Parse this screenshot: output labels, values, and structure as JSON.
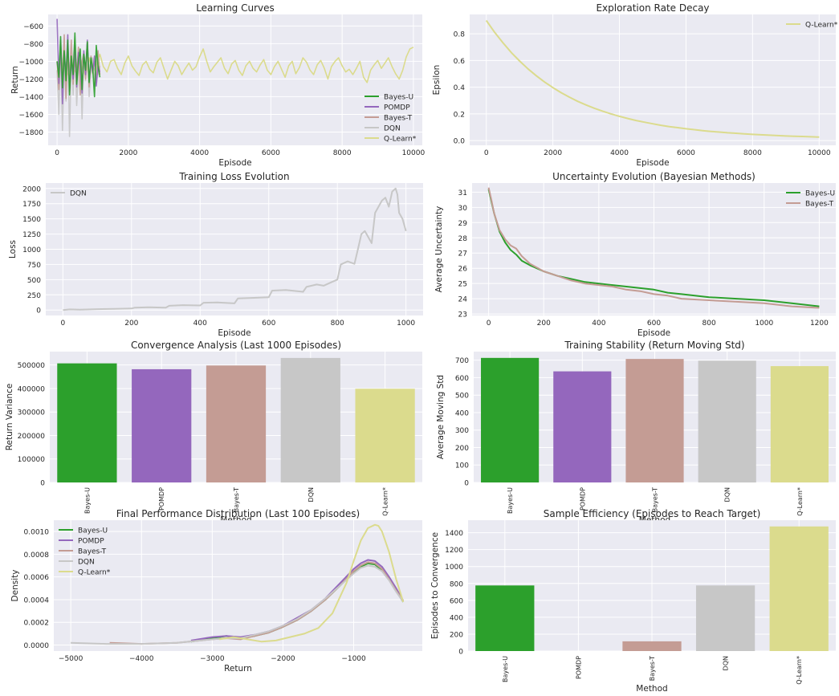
{
  "colors": {
    "Bayes-U": "#2ca02c",
    "POMDP": "#9467bd",
    "Bayes-T": "#c49c94",
    "DQN": "#c7c7c7",
    "Q-Learn*": "#dbdb8d",
    "panel_bg": "#eaeaf2",
    "grid": "#ffffff",
    "text": "#262626"
  },
  "chart_data": [
    {
      "id": "learning-curves",
      "type": "line",
      "title": "Learning Curves",
      "xlabel": "Episode",
      "ylabel": "Return",
      "xlim": [
        -250,
        10250
      ],
      "ylim": [
        -1950,
        -470
      ],
      "xticks": [
        0,
        2000,
        4000,
        6000,
        8000,
        10000
      ],
      "yticks": [
        -1800,
        -1600,
        -1400,
        -1200,
        -1000,
        -800,
        -600
      ],
      "grid": true,
      "legend": "lower-right",
      "series": [
        {
          "name": "Bayes-U",
          "x_range": [
            0,
            1200
          ],
          "values": [
            -1000,
            -1180,
            -720,
            -1300,
            -880,
            -1220,
            -760,
            -1380,
            -940,
            -1150,
            -680,
            -1260,
            -1000,
            -860,
            -1320,
            -920,
            -1100,
            -780,
            -1240,
            -960,
            -1080,
            -1400,
            -820,
            -1050,
            -1180
          ]
        },
        {
          "name": "POMDP",
          "x_range": [
            0,
            1200
          ],
          "values": [
            -520,
            -1250,
            -760,
            -1480,
            -900,
            -1160,
            -700,
            -1340,
            -980,
            -1200,
            -820,
            -1290,
            -900,
            -1060,
            -1360,
            -880,
            -1150,
            -760,
            -1230,
            -1010,
            -1130,
            -940,
            -1280,
            -1060,
            -1120
          ]
        },
        {
          "name": "Bayes-T",
          "x_range": [
            0,
            1200
          ],
          "values": [
            -1000,
            -1320,
            -860,
            -1150,
            -700,
            -1420,
            -900,
            -1180,
            -760,
            -1260,
            -980,
            -1120,
            -840,
            -1380,
            -1000,
            -900,
            -1200,
            -800,
            -1290,
            -940,
            -1100,
            -1000,
            -1240,
            -880,
            -1150
          ]
        },
        {
          "name": "DQN",
          "x_range": [
            0,
            1200
          ],
          "values": [
            -1100,
            -1600,
            -820,
            -1780,
            -1000,
            -1450,
            -700,
            -1850,
            -950,
            -1380,
            -760,
            -1500,
            -1080,
            -880,
            -1650,
            -940,
            -1220,
            -820,
            -1400,
            -1100,
            -960,
            -1280,
            -880,
            -1150,
            -1050
          ]
        },
        {
          "name": "Q-Learn*",
          "x_range": [
            0,
            10000
          ],
          "values": [
            -1000,
            -1100,
            -1080,
            -1150,
            -1020,
            -1120,
            -990,
            -1060,
            -1170,
            -960,
            -1140,
            -1030,
            -920,
            -1060,
            -1120,
            -1000,
            -980,
            -1080,
            -1150,
            -1020,
            -940,
            -1050,
            -1110,
            -1160,
            -1040,
            -1000,
            -1090,
            -1130,
            -1010,
            -960,
            -1080,
            -1200,
            -1100,
            -1000,
            -1050,
            -1150,
            -1080,
            -1020,
            -1100,
            -1060,
            -950,
            -860,
            -1000,
            -1120,
            -1060,
            -1010,
            -960,
            -1080,
            -1140,
            -1030,
            -990,
            -1100,
            -1160,
            -1050,
            -1000,
            -1080,
            -1120,
            -1040,
            -980,
            -1100,
            -1150,
            -1060,
            -1000,
            -1090,
            -1180,
            -1050,
            -1000,
            -1140,
            -1070,
            -960,
            -1010,
            -1100,
            -1150,
            -1040,
            -990,
            -1080,
            -1200,
            -1060,
            -1000,
            -960,
            -1050,
            -1120,
            -1090,
            -1150,
            -1080,
            -1000,
            -1180,
            -1240,
            -1100,
            -1040,
            -990,
            -1080,
            -1020,
            -960,
            -1060,
            -1140,
            -1200,
            -1100,
            -950,
            -860,
            -840
          ]
        }
      ]
    },
    {
      "id": "exploration-rate",
      "type": "line",
      "title": "Exploration Rate Decay",
      "xlabel": "Episode",
      "ylabel": "Epsilon",
      "xlim": [
        -500,
        10500
      ],
      "ylim": [
        -0.035,
        0.945
      ],
      "xticks": [
        0,
        2000,
        4000,
        6000,
        8000,
        10000
      ],
      "yticks": [
        0.0,
        0.2,
        0.4,
        0.6,
        0.8
      ],
      "tick_decimals": 1,
      "grid": true,
      "legend": "top-right",
      "series": [
        {
          "name": "Q-Learn*",
          "x_range": [
            0,
            10000
          ],
          "values": [
            0.9,
            0.811,
            0.732,
            0.66,
            0.596,
            0.538,
            0.486,
            0.439,
            0.397,
            0.359,
            0.325,
            0.294,
            0.267,
            0.242,
            0.22,
            0.2,
            0.182,
            0.166,
            0.151,
            0.138,
            0.126,
            0.115,
            0.105,
            0.097,
            0.089,
            0.082,
            0.075,
            0.069,
            0.064,
            0.059,
            0.055,
            0.051,
            0.047,
            0.044,
            0.041,
            0.038,
            0.035,
            0.033,
            0.031,
            0.029,
            0.027
          ]
        }
      ]
    },
    {
      "id": "training-loss",
      "type": "line",
      "title": "Training Loss Evolution",
      "xlabel": "Episode",
      "ylabel": "Loss",
      "xlim": [
        -50,
        1050
      ],
      "ylim": [
        -90,
        2090
      ],
      "xticks": [
        0,
        200,
        400,
        600,
        800,
        1000
      ],
      "yticks": [
        0,
        250,
        500,
        750,
        1000,
        1250,
        1500,
        1750,
        2000
      ],
      "grid": true,
      "legend": "top-left",
      "series": [
        {
          "name": "DQN",
          "x": [
            0,
            20,
            50,
            100,
            150,
            200,
            210,
            250,
            300,
            310,
            350,
            400,
            410,
            450,
            500,
            510,
            550,
            600,
            610,
            650,
            700,
            710,
            740,
            760,
            780,
            800,
            810,
            830,
            850,
            860,
            870,
            880,
            900,
            910,
            930,
            940,
            950,
            960,
            970,
            975,
            980,
            990,
            1000
          ],
          "values": [
            0,
            10,
            5,
            15,
            20,
            25,
            40,
            45,
            40,
            70,
            80,
            75,
            120,
            125,
            110,
            190,
            200,
            210,
            320,
            330,
            300,
            380,
            420,
            400,
            450,
            500,
            750,
            800,
            760,
            1000,
            1250,
            1300,
            1100,
            1600,
            1800,
            1850,
            1700,
            1950,
            2000,
            1900,
            1600,
            1500,
            1300
          ]
        }
      ]
    },
    {
      "id": "uncertainty-evolution",
      "type": "line",
      "title": "Uncertainty Evolution (Bayesian Methods)",
      "xlabel": "Episode",
      "ylabel": "Average Uncertainty",
      "xlim": [
        -60,
        1260
      ],
      "ylim": [
        22.9,
        31.6
      ],
      "xticks": [
        0,
        200,
        400,
        600,
        800,
        1000,
        1200
      ],
      "yticks": [
        23,
        24,
        25,
        26,
        27,
        28,
        29,
        30,
        31
      ],
      "grid": true,
      "legend": "top-right",
      "series": [
        {
          "name": "Bayes-U",
          "x": [
            0,
            10,
            20,
            40,
            60,
            80,
            100,
            120,
            150,
            200,
            250,
            300,
            350,
            400,
            450,
            500,
            550,
            600,
            650,
            700,
            800,
            900,
            1000,
            1100,
            1200
          ],
          "values": [
            31.2,
            30.4,
            29.6,
            28.4,
            27.7,
            27.2,
            26.9,
            26.5,
            26.2,
            25.8,
            25.5,
            25.3,
            25.1,
            25.0,
            24.9,
            24.8,
            24.7,
            24.6,
            24.4,
            24.3,
            24.1,
            24.0,
            23.9,
            23.7,
            23.5
          ]
        },
        {
          "name": "Bayes-T",
          "x": [
            0,
            10,
            20,
            40,
            60,
            80,
            100,
            120,
            150,
            200,
            250,
            300,
            350,
            400,
            450,
            500,
            550,
            600,
            650,
            700,
            800,
            900,
            1000,
            1100,
            1200
          ],
          "values": [
            31.3,
            30.5,
            29.6,
            28.5,
            27.9,
            27.5,
            27.3,
            26.8,
            26.3,
            25.8,
            25.5,
            25.2,
            25.0,
            24.9,
            24.8,
            24.6,
            24.5,
            24.3,
            24.2,
            24.0,
            23.9,
            23.8,
            23.7,
            23.5,
            23.4
          ]
        }
      ]
    },
    {
      "id": "convergence-analysis",
      "type": "bar",
      "title": "Convergence Analysis (Last 1000 Episodes)",
      "xlabel": "Method",
      "ylabel": "Return Variance",
      "categories": [
        "Bayes-U",
        "POMDP",
        "Bayes-T",
        "DQN",
        "Q-Learn*"
      ],
      "values": [
        507000,
        482000,
        498000,
        530000,
        399000
      ],
      "ylim": [
        0,
        557000
      ],
      "yticks": [
        0,
        100000,
        200000,
        300000,
        400000,
        500000
      ],
      "grid": true
    },
    {
      "id": "training-stability",
      "type": "bar",
      "title": "Training Stability (Return Moving Std)",
      "xlabel": "Method",
      "ylabel": "Average Moving Std",
      "categories": [
        "Bayes-U",
        "POMDP",
        "Bayes-T",
        "DQN",
        "Q-Learn*"
      ],
      "values": [
        713,
        636,
        707,
        697,
        666
      ],
      "ylim": [
        0,
        749
      ],
      "yticks": [
        0,
        100,
        200,
        300,
        400,
        500,
        600,
        700
      ],
      "grid": true
    },
    {
      "id": "final-performance",
      "type": "line",
      "title": "Final Performance Distribution (Last 100 Episodes)",
      "xlabel": "Return",
      "ylabel": "Density",
      "xlim": [
        -5240,
        -30
      ],
      "ylim": [
        -5.3e-05,
        0.0011
      ],
      "xticks": [
        -5000,
        -4000,
        -3000,
        -2000,
        -1000
      ],
      "yticks": [
        0.0,
        0.0002,
        0.0004,
        0.0006,
        0.0008,
        0.001
      ],
      "tick_decimals": 4,
      "grid": true,
      "legend": "top-left",
      "series": [
        {
          "name": "Bayes-U",
          "x": [
            -3300,
            -3000,
            -2800,
            -2600,
            -2400,
            -2200,
            -2000,
            -1800,
            -1600,
            -1400,
            -1200,
            -1000,
            -900,
            -800,
            -700,
            -600,
            -500,
            -400,
            -300
          ],
          "values": [
            3e-05,
            6e-05,
            8e-05,
            6e-05,
            8e-05,
            0.00011,
            0.00016,
            0.00022,
            0.0003,
            0.0004,
            0.00052,
            0.00064,
            0.00069,
            0.00072,
            0.00071,
            0.00066,
            0.00058,
            0.00048,
            0.00038
          ]
        },
        {
          "name": "POMDP",
          "x": [
            -3300,
            -3000,
            -2800,
            -2600,
            -2400,
            -2200,
            -2000,
            -1800,
            -1600,
            -1400,
            -1200,
            -1000,
            -900,
            -800,
            -700,
            -600,
            -500,
            -400,
            -300
          ],
          "values": [
            4e-05,
            7e-05,
            8e-05,
            7e-05,
            9e-05,
            0.00012,
            0.00017,
            0.00024,
            0.00031,
            0.00041,
            0.00054,
            0.00067,
            0.00072,
            0.00075,
            0.00074,
            0.00069,
            0.0006,
            0.0005,
            0.00039
          ]
        },
        {
          "name": "Bayes-T",
          "x": [
            -4450,
            -4000,
            -3500,
            -3000,
            -2800,
            -2600,
            -2400,
            -2200,
            -2000,
            -1800,
            -1600,
            -1400,
            -1200,
            -1000,
            -900,
            -800,
            -700,
            -600,
            -500,
            -400,
            -300
          ],
          "values": [
            2e-05,
            1e-05,
            2e-05,
            5e-05,
            6e-05,
            5e-05,
            8e-05,
            0.00011,
            0.00016,
            0.00022,
            0.0003,
            0.0004,
            0.00052,
            0.00065,
            0.0007,
            0.00073,
            0.00072,
            0.00067,
            0.00058,
            0.00048,
            0.00039
          ]
        },
        {
          "name": "DQN",
          "x": [
            -5000,
            -4500,
            -4000,
            -3500,
            -3000,
            -2800,
            -2600,
            -2400,
            -2200,
            -2000,
            -1800,
            -1600,
            -1400,
            -1200,
            -1000,
            -900,
            -800,
            -700,
            -600,
            -500,
            -400,
            -300
          ],
          "values": [
            2e-05,
            1e-05,
            1e-05,
            2e-05,
            5e-05,
            6e-05,
            6e-05,
            9e-05,
            0.00012,
            0.00017,
            0.00023,
            0.00031,
            0.00041,
            0.00052,
            0.00063,
            0.00068,
            0.0007,
            0.00069,
            0.00065,
            0.00057,
            0.00047,
            0.00038
          ]
        },
        {
          "name": "Q-Learn*",
          "x": [
            -2900,
            -2700,
            -2500,
            -2300,
            -2100,
            -1900,
            -1700,
            -1500,
            -1300,
            -1100,
            -1000,
            -900,
            -800,
            -700,
            -650,
            -600,
            -500,
            -400,
            -300
          ],
          "values": [
            5e-05,
            7e-05,
            5e-05,
            3e-05,
            4e-05,
            7e-05,
            0.0001,
            0.00015,
            0.00028,
            0.00055,
            0.00074,
            0.00092,
            0.00103,
            0.00106,
            0.00105,
            0.001,
            0.00082,
            0.00058,
            0.00038
          ]
        }
      ]
    },
    {
      "id": "sample-efficiency",
      "type": "bar",
      "title": "Sample Efficiency (Episodes to Reach Target)",
      "xlabel": "Method",
      "ylabel": "Episodes to Convergence",
      "categories": [
        "Bayes-U",
        "POMDP",
        "Bayes-T",
        "DQN",
        "Q-Learn*"
      ],
      "values": [
        776,
        0,
        115,
        776,
        1474
      ],
      "ylim": [
        0,
        1548
      ],
      "yticks": [
        0,
        200,
        400,
        600,
        800,
        1000,
        1200,
        1400
      ],
      "grid": true
    }
  ]
}
